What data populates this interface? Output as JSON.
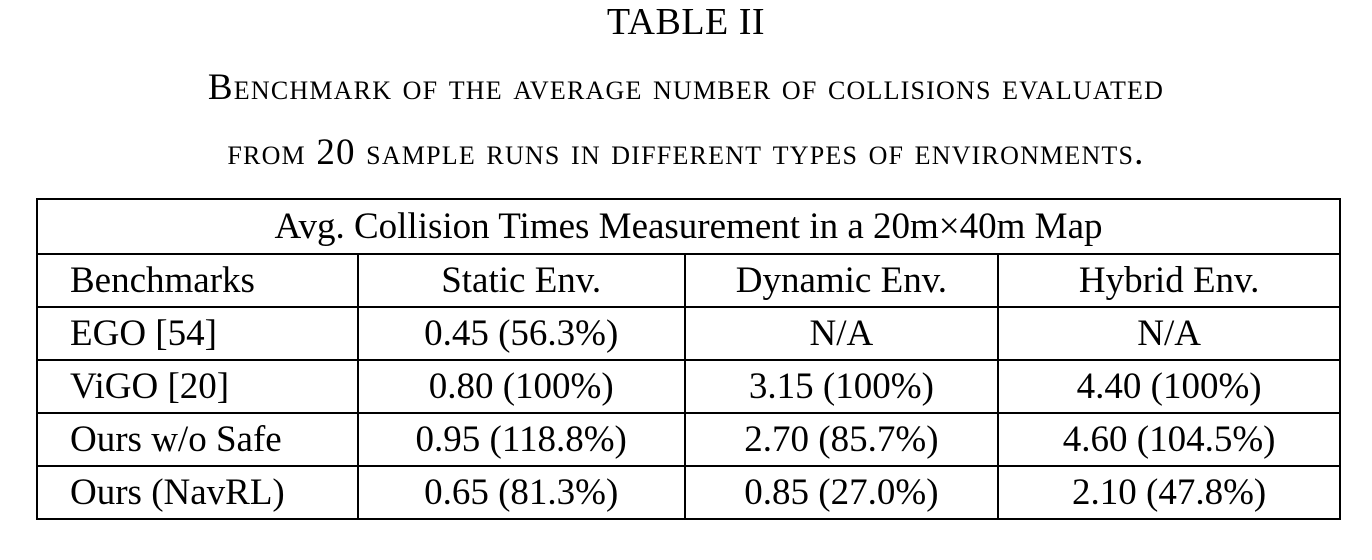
{
  "caption": {
    "label": "TABLE II",
    "line1": "Benchmark of the average number of collisions evaluated",
    "line2": "from 20 sample runs in different types of environments."
  },
  "table": {
    "title": "Avg. Collision Times Measurement in a 20m×40m Map",
    "headers": [
      "Benchmarks",
      "Static Env.",
      "Dynamic Env.",
      "Hybrid Env."
    ],
    "rows": [
      [
        "EGO [54]",
        "0.45 (56.3%)",
        "N/A",
        "N/A"
      ],
      [
        "ViGO [20]",
        "0.80 (100%)",
        "3.15 (100%)",
        "4.40 (100%)"
      ],
      [
        "Ours w/o Safe",
        "0.95 (118.8%)",
        "2.70 (85.7%)",
        "4.60 (104.5%)"
      ],
      [
        "Ours (NavRL)",
        "0.65 (81.3%)",
        "0.85 (27.0%)",
        "2.10 (47.8%)"
      ]
    ]
  }
}
